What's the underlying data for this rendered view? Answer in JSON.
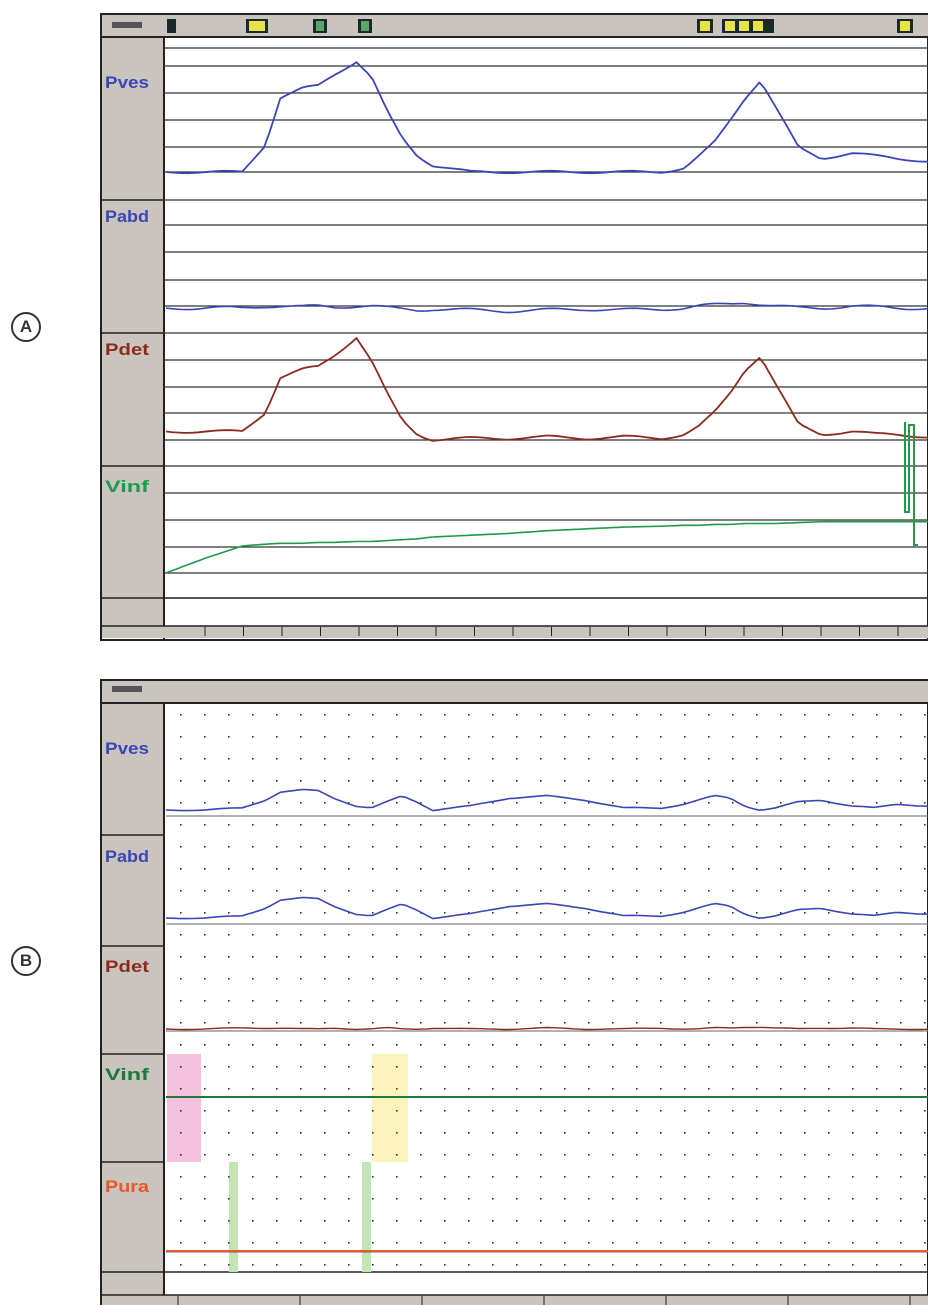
{
  "panels": [
    {
      "label": "A"
    },
    {
      "label": "B"
    }
  ],
  "panel_a": {
    "channels": [
      {
        "name": "Pves",
        "color": "#3b45b5"
      },
      {
        "name": "Pabd",
        "color": "#3b45b5"
      },
      {
        "name": "Pdet",
        "color": "#8b2a1e"
      },
      {
        "name": "Vinf",
        "color": "#1f9a4a"
      }
    ]
  },
  "panel_b": {
    "channels": [
      {
        "name": "Pves",
        "color": "#3b45b5"
      },
      {
        "name": "Pabd",
        "color": "#3b45b5"
      },
      {
        "name": "Pdet",
        "color": "#8b2a1e"
      },
      {
        "name": "Vinf",
        "color": "#1f7a3a"
      },
      {
        "name": "Pura",
        "color": "#e8582a"
      }
    ],
    "highlight_colors": {
      "pink": "#f4c2dc",
      "yellow": "#fbf3bb",
      "green": "#c3e4b5"
    }
  },
  "chart_data": [
    {
      "type": "line",
      "x": [
        0,
        0.05,
        0.1,
        0.13,
        0.15,
        0.18,
        0.2,
        0.22,
        0.25,
        0.27,
        0.29,
        0.31,
        0.33,
        0.35,
        0.4,
        0.45,
        0.5,
        0.55,
        0.6,
        0.65,
        0.68,
        0.7,
        0.72,
        0.74,
        0.76,
        0.78,
        0.8,
        0.83,
        0.86,
        0.9,
        0.93,
        0.96,
        1
      ],
      "series": [
        {
          "values": [
            0,
            0,
            0,
            20,
            55,
            62,
            64,
            72,
            82,
            70,
            45,
            25,
            12,
            5,
            0,
            0,
            0,
            0,
            0,
            0,
            3,
            12,
            22,
            38,
            55,
            68,
            48,
            18,
            10,
            14,
            12,
            10,
            8
          ]
        },
        {
          "values": [
            10,
            10,
            10,
            12,
            12,
            11,
            12,
            11,
            12,
            12,
            10,
            9,
            8,
            9,
            8,
            7,
            8,
            9,
            8,
            9,
            10,
            12,
            13,
            14,
            16,
            14,
            12,
            10,
            10,
            12,
            11,
            10,
            10
          ]
        },
        {
          "values": [
            10,
            10,
            10,
            24,
            50,
            56,
            58,
            66,
            80,
            62,
            38,
            18,
            8,
            4,
            5,
            5,
            6,
            5,
            6,
            5,
            8,
            14,
            24,
            38,
            56,
            66,
            45,
            15,
            8,
            10,
            8,
            8,
            6
          ]
        },
        {
          "values": [
            0,
            16,
            30,
            32,
            33,
            33,
            34,
            34,
            35,
            35,
            36,
            37,
            38,
            40,
            42,
            44,
            47,
            49,
            51,
            52,
            53,
            53,
            54,
            54,
            55,
            55,
            55,
            56,
            57,
            57,
            57,
            57,
            57
          ]
        }
      ]
    },
    {
      "type": "line",
      "x": [
        0,
        0.05,
        0.1,
        0.13,
        0.15,
        0.18,
        0.2,
        0.22,
        0.25,
        0.27,
        0.29,
        0.31,
        0.33,
        0.35,
        0.4,
        0.45,
        0.5,
        0.55,
        0.6,
        0.65,
        0.68,
        0.7,
        0.72,
        0.74,
        0.76,
        0.78,
        0.8,
        0.83,
        0.86,
        0.9,
        0.93,
        0.96,
        1
      ],
      "series": [
        {
          "values": [
            6,
            6,
            8,
            16,
            24,
            26,
            25,
            18,
            10,
            8,
            14,
            20,
            14,
            6,
            10,
            18,
            20,
            16,
            8,
            8,
            12,
            16,
            20,
            18,
            10,
            6,
            8,
            14,
            16,
            10,
            8,
            12,
            10
          ]
        },
        {
          "values": [
            6,
            6,
            8,
            16,
            24,
            26,
            25,
            18,
            10,
            8,
            14,
            20,
            14,
            6,
            10,
            18,
            20,
            16,
            8,
            8,
            12,
            16,
            20,
            18,
            10,
            6,
            8,
            14,
            16,
            10,
            8,
            12,
            10
          ]
        },
        {
          "values": [
            2,
            2,
            3,
            3,
            3,
            2,
            2,
            3,
            2,
            2,
            3,
            2,
            2,
            3,
            2,
            2,
            3,
            2,
            2,
            3,
            2,
            2,
            3,
            3,
            4,
            4,
            3,
            2,
            3,
            3,
            2,
            2,
            2
          ]
        },
        {
          "values": [
            40,
            40,
            40,
            40,
            40,
            40,
            40,
            40,
            40,
            40,
            40,
            40,
            40,
            40,
            40,
            40,
            40,
            40,
            40,
            40,
            40,
            40,
            40,
            40,
            40,
            40,
            40,
            40,
            40,
            40,
            40,
            40,
            40
          ]
        },
        {
          "values": [
            2,
            2,
            2,
            2,
            2,
            2,
            2,
            2,
            2,
            2,
            2,
            2,
            2,
            2,
            2,
            2,
            2,
            2,
            2,
            2,
            2,
            2,
            2,
            2,
            2,
            2,
            2,
            2,
            2,
            2,
            2,
            2,
            2
          ]
        }
      ]
    }
  ]
}
